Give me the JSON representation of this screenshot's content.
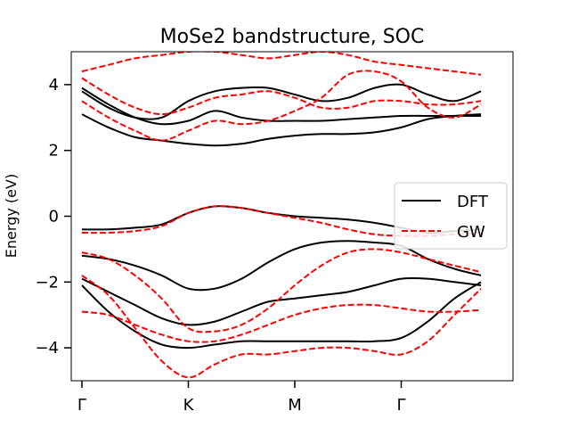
{
  "chart_data": {
    "type": "line",
    "title": "MoSe2 bandstructure, SOC",
    "xlabel": "",
    "ylabel": "Energy (eV)",
    "xlim": [
      -0.1,
      4.05
    ],
    "ylim": [
      -5,
      5
    ],
    "xticks": [
      {
        "value": 0,
        "label": "Γ"
      },
      {
        "value": 1,
        "label": "K"
      },
      {
        "value": 2,
        "label": "M"
      },
      {
        "value": 3,
        "label": "Γ"
      }
    ],
    "yticks": [
      {
        "value": -4,
        "label": "−4"
      },
      {
        "value": -2,
        "label": "−2"
      },
      {
        "value": 0,
        "label": "0"
      },
      {
        "value": 2,
        "label": "2"
      },
      {
        "value": 4,
        "label": "4"
      }
    ],
    "grid": false,
    "legend": {
      "position": "center-right",
      "entries": [
        {
          "label": "DFT",
          "color": "#000000",
          "dash": "solid"
        },
        {
          "label": "GW",
          "color": "#ff0000",
          "dash": "dashed"
        }
      ]
    },
    "series": [
      {
        "name": "DFT",
        "color": "#000000",
        "dash": "solid",
        "bands": [
          {
            "x": [
              0,
              0.25,
              0.5,
              0.75,
              1.0,
              1.25,
              1.5,
              1.75,
              2.0,
              2.25,
              2.5,
              2.75,
              3.0,
              3.25,
              3.5,
              3.75
            ],
            "y": [
              3.9,
              3.4,
              3.0,
              2.8,
              2.9,
              3.2,
              3.0,
              2.9,
              2.9,
              2.9,
              2.95,
              3.0,
              3.05,
              3.05,
              3.05,
              3.05
            ]
          },
          {
            "x": [
              0,
              0.25,
              0.5,
              0.75,
              1.0,
              1.25,
              1.5,
              1.75,
              2.0,
              2.25,
              2.5,
              2.75,
              3.0,
              3.25,
              3.5,
              3.75
            ],
            "y": [
              3.1,
              2.7,
              2.4,
              2.3,
              2.2,
              2.15,
              2.2,
              2.35,
              2.45,
              2.5,
              2.5,
              2.55,
              2.7,
              2.95,
              3.05,
              3.1
            ]
          },
          {
            "x": [
              0,
              0.25,
              0.5,
              0.75,
              1.0,
              1.25,
              1.5,
              1.75,
              2.0,
              2.25,
              2.5,
              2.75,
              3.0,
              3.25,
              3.5,
              3.75
            ],
            "y": [
              3.8,
              3.3,
              3.0,
              3.0,
              3.5,
              3.8,
              3.9,
              3.9,
              3.7,
              3.5,
              3.6,
              3.9,
              4.0,
              3.7,
              3.5,
              3.8
            ]
          },
          {
            "x": [
              0,
              0.25,
              0.5,
              0.75,
              1.0,
              1.25,
              1.5,
              1.75,
              2.0,
              2.25,
              2.5,
              2.75,
              3.0,
              3.25,
              3.5,
              3.75
            ],
            "y": [
              -0.4,
              -0.4,
              -0.35,
              -0.25,
              0.1,
              0.3,
              0.25,
              0.1,
              0.0,
              -0.05,
              -0.1,
              -0.2,
              -0.35,
              -0.5,
              -0.45,
              -0.4
            ]
          },
          {
            "x": [
              0,
              0.25,
              0.5,
              0.75,
              1.0,
              1.25,
              1.5,
              1.75,
              2.0,
              2.25,
              2.5,
              2.75,
              3.0,
              3.25,
              3.5,
              3.75
            ],
            "y": [
              -1.2,
              -1.3,
              -1.5,
              -1.8,
              -2.2,
              -2.2,
              -1.9,
              -1.4,
              -1.0,
              -0.8,
              -0.75,
              -0.8,
              -0.9,
              -1.3,
              -1.6,
              -1.8
            ]
          },
          {
            "x": [
              0,
              0.25,
              0.5,
              0.75,
              1.0,
              1.25,
              1.5,
              1.75,
              2.0,
              2.25,
              2.5,
              2.75,
              3.0,
              3.25,
              3.5,
              3.75
            ],
            "y": [
              -1.9,
              -2.3,
              -2.7,
              -3.1,
              -3.3,
              -3.2,
              -2.9,
              -2.6,
              -2.5,
              -2.4,
              -2.3,
              -2.1,
              -1.9,
              -1.9,
              -2.0,
              -2.1
            ]
          },
          {
            "x": [
              0,
              0.25,
              0.5,
              0.75,
              1.0,
              1.25,
              1.5,
              1.75,
              2.0,
              2.25,
              2.5,
              2.75,
              3.0,
              3.25,
              3.5,
              3.75
            ],
            "y": [
              -2.1,
              -2.9,
              -3.5,
              -3.9,
              -4.0,
              -3.9,
              -3.8,
              -3.8,
              -3.8,
              -3.8,
              -3.8,
              -3.8,
              -3.7,
              -3.2,
              -2.5,
              -2.0
            ]
          }
        ]
      },
      {
        "name": "GW",
        "color": "#ff0000",
        "dash": "dashed",
        "bands": [
          {
            "x": [
              0,
              0.25,
              0.5,
              0.75,
              1.0,
              1.25,
              1.5,
              1.75,
              2.0,
              2.25,
              2.5,
              2.75,
              3.0,
              3.25,
              3.5,
              3.75
            ],
            "y": [
              4.2,
              3.7,
              3.3,
              3.1,
              3.3,
              3.6,
              3.7,
              3.8,
              3.6,
              3.3,
              3.3,
              3.5,
              3.5,
              3.4,
              3.4,
              3.5
            ]
          },
          {
            "x": [
              0,
              0.25,
              0.5,
              0.75,
              1.0,
              1.25,
              1.5,
              1.75,
              2.0,
              2.25,
              2.5,
              2.75,
              3.0,
              3.25,
              3.5,
              3.75
            ],
            "y": [
              3.5,
              3.0,
              2.6,
              2.3,
              2.6,
              2.9,
              2.8,
              2.9,
              3.2,
              3.6,
              4.3,
              4.4,
              4.1,
              3.3,
              3.0,
              3.4
            ]
          },
          {
            "x": [
              0,
              0.25,
              0.5,
              0.75,
              1.0,
              1.25,
              1.5,
              1.75,
              2.0,
              2.25,
              2.5,
              2.75,
              3.0,
              3.25,
              3.5,
              3.75
            ],
            "y": [
              4.4,
              4.6,
              4.8,
              4.9,
              5.0,
              5.0,
              4.9,
              4.8,
              4.9,
              5.0,
              4.9,
              4.7,
              4.6,
              4.5,
              4.4,
              4.3
            ]
          },
          {
            "x": [
              0,
              0.25,
              0.5,
              0.75,
              1.0,
              1.25,
              1.5,
              1.75,
              2.0,
              2.25,
              2.5,
              2.75,
              3.0,
              3.25,
              3.5,
              3.75
            ],
            "y": [
              -0.5,
              -0.5,
              -0.45,
              -0.3,
              0.1,
              0.3,
              0.25,
              0.1,
              -0.05,
              -0.2,
              -0.4,
              -0.55,
              -0.6,
              -0.6,
              -0.55,
              -0.5
            ]
          },
          {
            "x": [
              0,
              0.25,
              0.5,
              0.75,
              1.0,
              1.25,
              1.5,
              1.75,
              2.0,
              2.25,
              2.5,
              2.75,
              3.0,
              3.25,
              3.5,
              3.75
            ],
            "y": [
              -1.1,
              -1.3,
              -1.8,
              -2.5,
              -3.4,
              -3.5,
              -3.3,
              -2.8,
              -2.1,
              -1.5,
              -1.1,
              -1.0,
              -1.1,
              -1.3,
              -1.5,
              -1.7
            ]
          },
          {
            "x": [
              0,
              0.25,
              0.5,
              0.75,
              1.0,
              1.25,
              1.5,
              1.75,
              2.0,
              2.25,
              2.5,
              2.75,
              3.0,
              3.25,
              3.5,
              3.75
            ],
            "y": [
              -2.9,
              -3.0,
              -3.3,
              -3.6,
              -3.8,
              -3.8,
              -3.6,
              -3.3,
              -3.0,
              -2.8,
              -2.7,
              -2.7,
              -2.8,
              -2.9,
              -2.9,
              -2.85
            ]
          },
          {
            "x": [
              0,
              0.25,
              0.5,
              0.75,
              1.0,
              1.25,
              1.5,
              1.75,
              2.0,
              2.25,
              2.5,
              2.75,
              3.0,
              3.25,
              3.5,
              3.75
            ],
            "y": [
              -1.8,
              -2.4,
              -3.4,
              -4.4,
              -4.9,
              -4.5,
              -4.2,
              -4.2,
              -4.1,
              -4.0,
              -4.0,
              -4.1,
              -4.2,
              -3.8,
              -3.0,
              -2.2
            ]
          }
        ]
      }
    ]
  }
}
